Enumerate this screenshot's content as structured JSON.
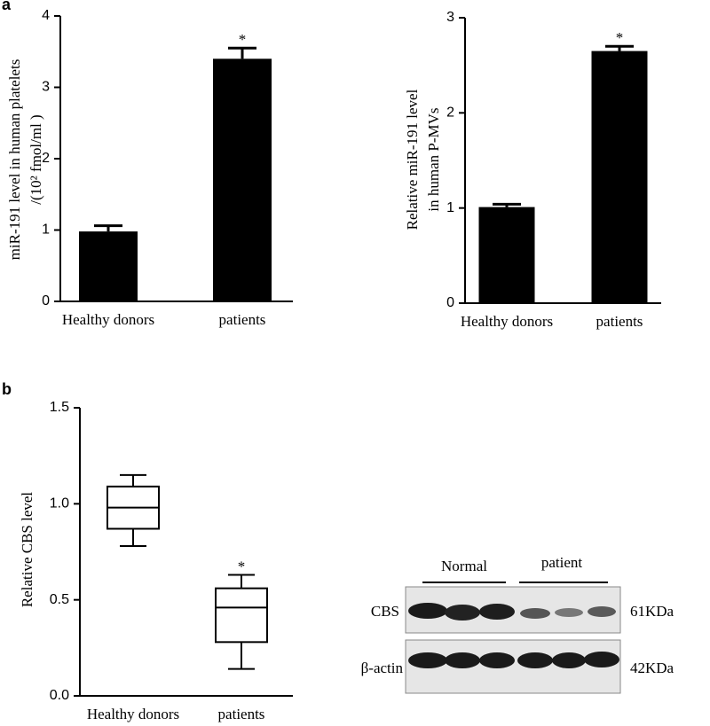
{
  "panels": [
    "a",
    "b"
  ],
  "chart_data": [
    {
      "type": "bar",
      "ylabel": [
        "miR-191 level in human platelets",
        "/(10² fmol/ml )"
      ],
      "categories": [
        "Healthy donors",
        "patients"
      ],
      "values": [
        0.98,
        3.4
      ],
      "errors": [
        0.08,
        0.15
      ],
      "annotations": [
        null,
        "*"
      ],
      "color": "#000000",
      "ylim": [
        0,
        4
      ],
      "yticks": [
        0,
        1,
        2,
        3,
        4
      ]
    },
    {
      "type": "bar",
      "ylabel": [
        "Relative miR-191 level",
        "in human P-MVs"
      ],
      "categories": [
        "Healthy donors",
        "patients"
      ],
      "values": [
        1.01,
        2.65
      ],
      "errors": [
        0.03,
        0.05
      ],
      "annotations": [
        null,
        "*"
      ],
      "color": "#000000",
      "ylim": [
        0,
        3
      ],
      "yticks": [
        0,
        1,
        2,
        3
      ]
    },
    {
      "type": "box",
      "ylabel": [
        "Relative CBS level"
      ],
      "categories": [
        "Healthy donors",
        "patients"
      ],
      "min": [
        0.78,
        0.14
      ],
      "q1": [
        0.87,
        0.28
      ],
      "median": [
        0.98,
        0.46
      ],
      "q3": [
        1.09,
        0.56
      ],
      "max": [
        1.15,
        0.63
      ],
      "annotations": [
        null,
        "*"
      ],
      "color": "#000000",
      "ylim": [
        0,
        1.5
      ],
      "yticks": [
        {
          "value": 0,
          "label": "0.0"
        },
        0.5,
        {
          "value": 1,
          "label": "1.0"
        },
        1.5
      ]
    }
  ],
  "blot": {
    "groups": [
      "Normal",
      "patient"
    ],
    "rows": [
      "CBS",
      "β-actin"
    ],
    "sizes": [
      "61KDa",
      "42KDa"
    ]
  }
}
